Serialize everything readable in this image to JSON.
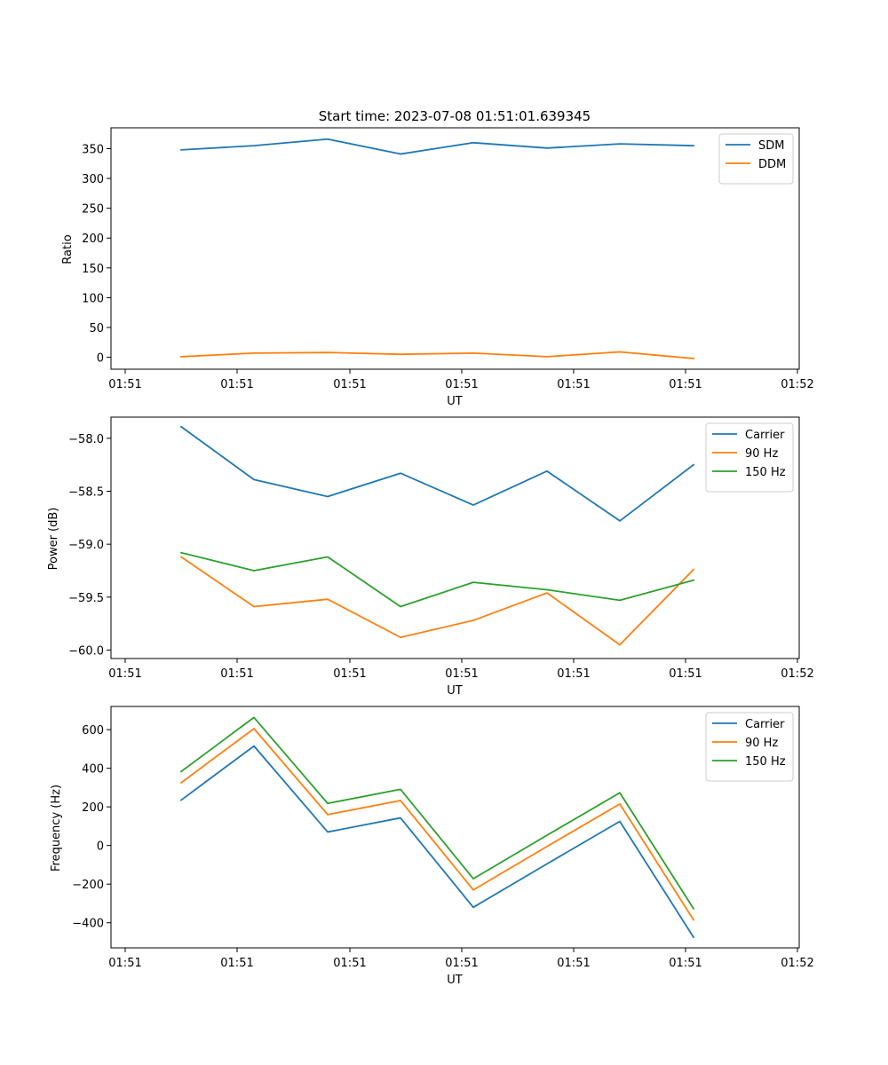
{
  "chart_data": [
    {
      "type": "line",
      "title": "Start time: 2023-07-08 01:51:01.639345",
      "xlabel": "UT",
      "ylabel": "Ratio",
      "x_tick_labels": [
        "01:51",
        "01:51",
        "01:51",
        "01:51",
        "01:51",
        "01:51",
        "01:52"
      ],
      "y_ticks": [
        0,
        50,
        100,
        150,
        200,
        250,
        300,
        350
      ],
      "ylim": [
        -20,
        385
      ],
      "legend_position": "top-right",
      "series": [
        {
          "name": "SDM",
          "color": "#1f77b4",
          "values": [
            348,
            355,
            366,
            341,
            360,
            351,
            358,
            355
          ]
        },
        {
          "name": "DDM",
          "color": "#ff7f0e",
          "values": [
            1,
            7,
            8,
            5,
            7,
            1,
            9,
            -2
          ]
        }
      ]
    },
    {
      "type": "line",
      "title": "",
      "xlabel": "UT",
      "ylabel": "Power (dB)",
      "x_tick_labels": [
        "01:51",
        "01:51",
        "01:51",
        "01:51",
        "01:51",
        "01:51",
        "01:52"
      ],
      "y_ticks": [
        -58.0,
        -58.5,
        -59.0,
        -59.5,
        -60.0
      ],
      "y_tick_labels": [
        "−58.0",
        "−58.5",
        "−59.0",
        "−59.5",
        "−60.0"
      ],
      "ylim": [
        -60.08,
        -57.8
      ],
      "legend_position": "top-right",
      "series": [
        {
          "name": "Carrier",
          "color": "#1f77b4",
          "values": [
            -57.89,
            -58.39,
            -58.55,
            -58.33,
            -58.63,
            -58.31,
            -58.78,
            -58.25
          ]
        },
        {
          "name": "90 Hz",
          "color": "#ff7f0e",
          "values": [
            -59.12,
            -59.59,
            -59.52,
            -59.88,
            -59.72,
            -59.46,
            -59.95,
            -59.24
          ]
        },
        {
          "name": "150 Hz",
          "color": "#2ca02c",
          "values": [
            -59.08,
            -59.25,
            -59.12,
            -59.59,
            -59.36,
            -59.43,
            -59.53,
            -59.34
          ]
        }
      ]
    },
    {
      "type": "line",
      "title": "",
      "xlabel": "UT",
      "ylabel": "Frequency (Hz)",
      "x_tick_labels": [
        "01:51",
        "01:51",
        "01:51",
        "01:51",
        "01:51",
        "01:51",
        "01:52"
      ],
      "y_ticks": [
        600,
        400,
        200,
        0,
        -200,
        -400
      ],
      "y_tick_labels": [
        "600",
        "400",
        "200",
        "0",
        "−200",
        "−400"
      ],
      "ylim": [
        -530,
        720
      ],
      "legend_position": "top-right",
      "series": [
        {
          "name": "Carrier",
          "color": "#1f77b4",
          "values": [
            235,
            515,
            70,
            143,
            -320,
            -95,
            125,
            -475
          ]
        },
        {
          "name": "90 Hz",
          "color": "#ff7f0e",
          "values": [
            325,
            605,
            160,
            233,
            -230,
            -5,
            215,
            -385
          ]
        },
        {
          "name": "150 Hz",
          "color": "#2ca02c",
          "values": [
            383,
            663,
            218,
            291,
            -172,
            53,
            273,
            -327
          ]
        }
      ]
    }
  ]
}
